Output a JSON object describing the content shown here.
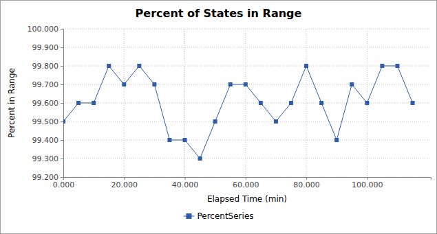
{
  "chart_data": {
    "type": "line",
    "title": "Percent of States in Range",
    "x_label": "Elapsed Time (min)",
    "y_label": "Percent in Range",
    "x": [
      0,
      5,
      10,
      15,
      20,
      25,
      30,
      35,
      40,
      45,
      50,
      55,
      60,
      65,
      70,
      75,
      80,
      85,
      90,
      95,
      100,
      105,
      110,
      115
    ],
    "series": [
      {
        "name": "PercentSeries",
        "color": "#2e5ca8",
        "marker": "square",
        "values": [
          99.5,
          99.6,
          99.6,
          99.8,
          99.7,
          99.8,
          99.7,
          99.4,
          99.4,
          99.3,
          99.5,
          99.7,
          99.7,
          99.6,
          99.5,
          99.6,
          99.8,
          99.6,
          99.4,
          99.7,
          99.6,
          99.8,
          99.8,
          99.6
        ]
      }
    ],
    "xlim": [
      0,
      121
    ],
    "xticks": [
      {
        "value": 0,
        "label": "0.000"
      },
      {
        "value": 20,
        "label": "20.000"
      },
      {
        "value": 40,
        "label": "40.000"
      },
      {
        "value": 60,
        "label": "60.000"
      },
      {
        "value": 80,
        "label": "80.000"
      },
      {
        "value": 100,
        "label": "100.000"
      }
    ],
    "ylim": [
      99.2,
      100
    ],
    "yticks": [
      {
        "value": 99.2,
        "label": "99.200"
      },
      {
        "value": 99.3,
        "label": "99.300"
      },
      {
        "value": 99.4,
        "label": "99.400"
      },
      {
        "value": 99.5,
        "label": "99.500"
      },
      {
        "value": 99.6,
        "label": "99.600"
      },
      {
        "value": 99.7,
        "label": "99.700"
      },
      {
        "value": 99.8,
        "label": "99.800"
      },
      {
        "value": 99.9,
        "label": "99.900"
      },
      {
        "value": 100,
        "label": "100.000"
      }
    ],
    "grid": true,
    "legend": "bottom"
  }
}
